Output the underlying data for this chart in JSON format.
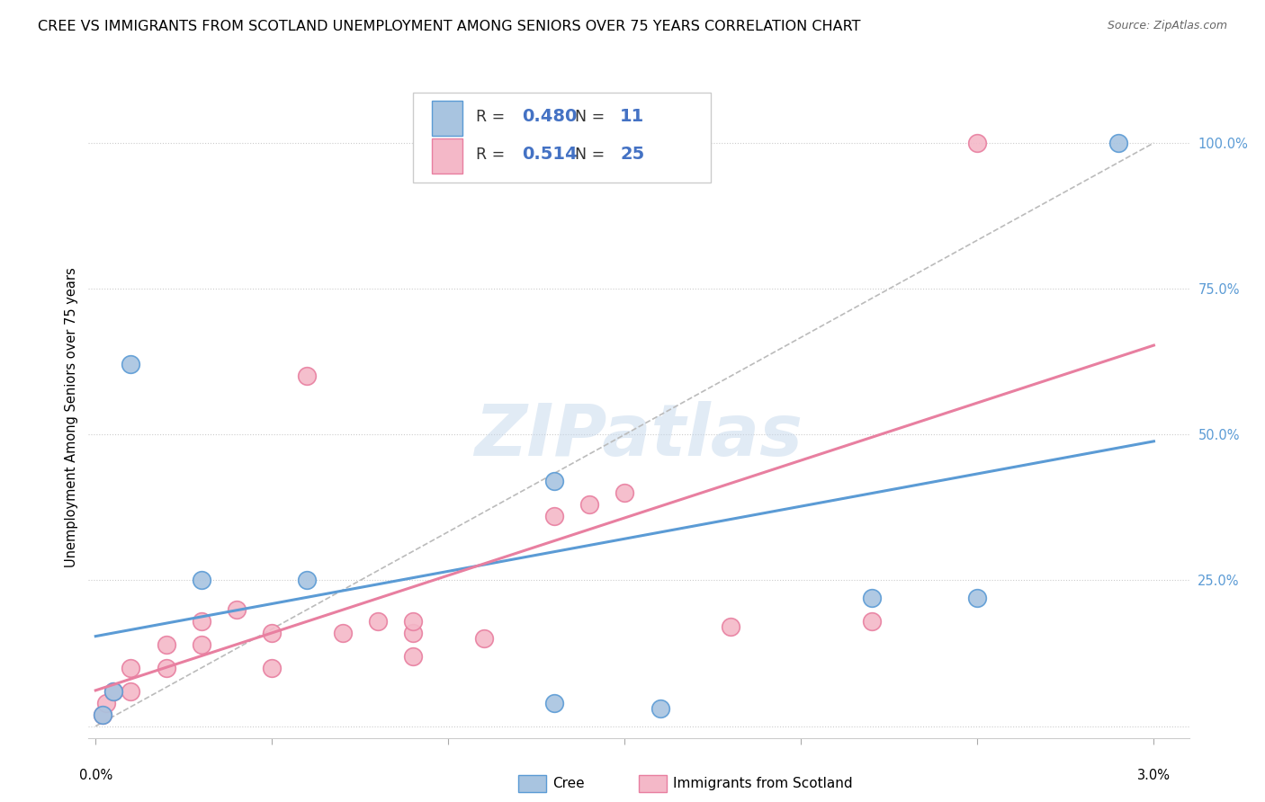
{
  "title": "CREE VS IMMIGRANTS FROM SCOTLAND UNEMPLOYMENT AMONG SENIORS OVER 75 YEARS CORRELATION CHART",
  "source": "Source: ZipAtlas.com",
  "ylabel": "Unemployment Among Seniors over 75 years",
  "ylim": [
    -0.02,
    1.08
  ],
  "xlim": [
    -0.0002,
    0.031
  ],
  "cree_color": "#a8c4e0",
  "cree_edge_color": "#5b9bd5",
  "scotland_color": "#f4b8c8",
  "scotland_edge_color": "#e87fa0",
  "line_cree_color": "#5b9bd5",
  "line_scotland_color": "#e87fa0",
  "diag_color": "#bbbbbb",
  "legend_r_cree": "0.480",
  "legend_n_cree": "11",
  "legend_r_scotland": "0.514",
  "legend_n_scotland": "25",
  "watermark": "ZIPatlas",
  "cree_x": [
    0.0002,
    0.0005,
    0.001,
    0.003,
    0.006,
    0.013,
    0.013,
    0.016,
    0.022,
    0.025,
    0.029
  ],
  "cree_y": [
    0.02,
    0.06,
    0.62,
    0.25,
    0.25,
    0.04,
    0.42,
    0.03,
    0.22,
    0.22,
    1.0
  ],
  "scotland_x": [
    0.0002,
    0.0003,
    0.0005,
    0.001,
    0.001,
    0.002,
    0.002,
    0.003,
    0.003,
    0.004,
    0.005,
    0.005,
    0.006,
    0.007,
    0.008,
    0.009,
    0.009,
    0.009,
    0.011,
    0.013,
    0.014,
    0.015,
    0.018,
    0.022,
    0.025
  ],
  "scotland_y": [
    0.02,
    0.04,
    0.06,
    0.06,
    0.1,
    0.1,
    0.14,
    0.14,
    0.18,
    0.2,
    0.1,
    0.16,
    0.6,
    0.16,
    0.18,
    0.12,
    0.16,
    0.18,
    0.15,
    0.36,
    0.38,
    0.4,
    0.17,
    0.18,
    1.0
  ],
  "marker_size": 200,
  "ytick_vals": [
    0.0,
    0.25,
    0.5,
    0.75,
    1.0
  ],
  "ytick_labels": [
    "",
    "25.0%",
    "50.0%",
    "75.0%",
    "100.0%"
  ],
  "xtick_vals": [
    0.0,
    0.005,
    0.01,
    0.015,
    0.02,
    0.025,
    0.03
  ]
}
